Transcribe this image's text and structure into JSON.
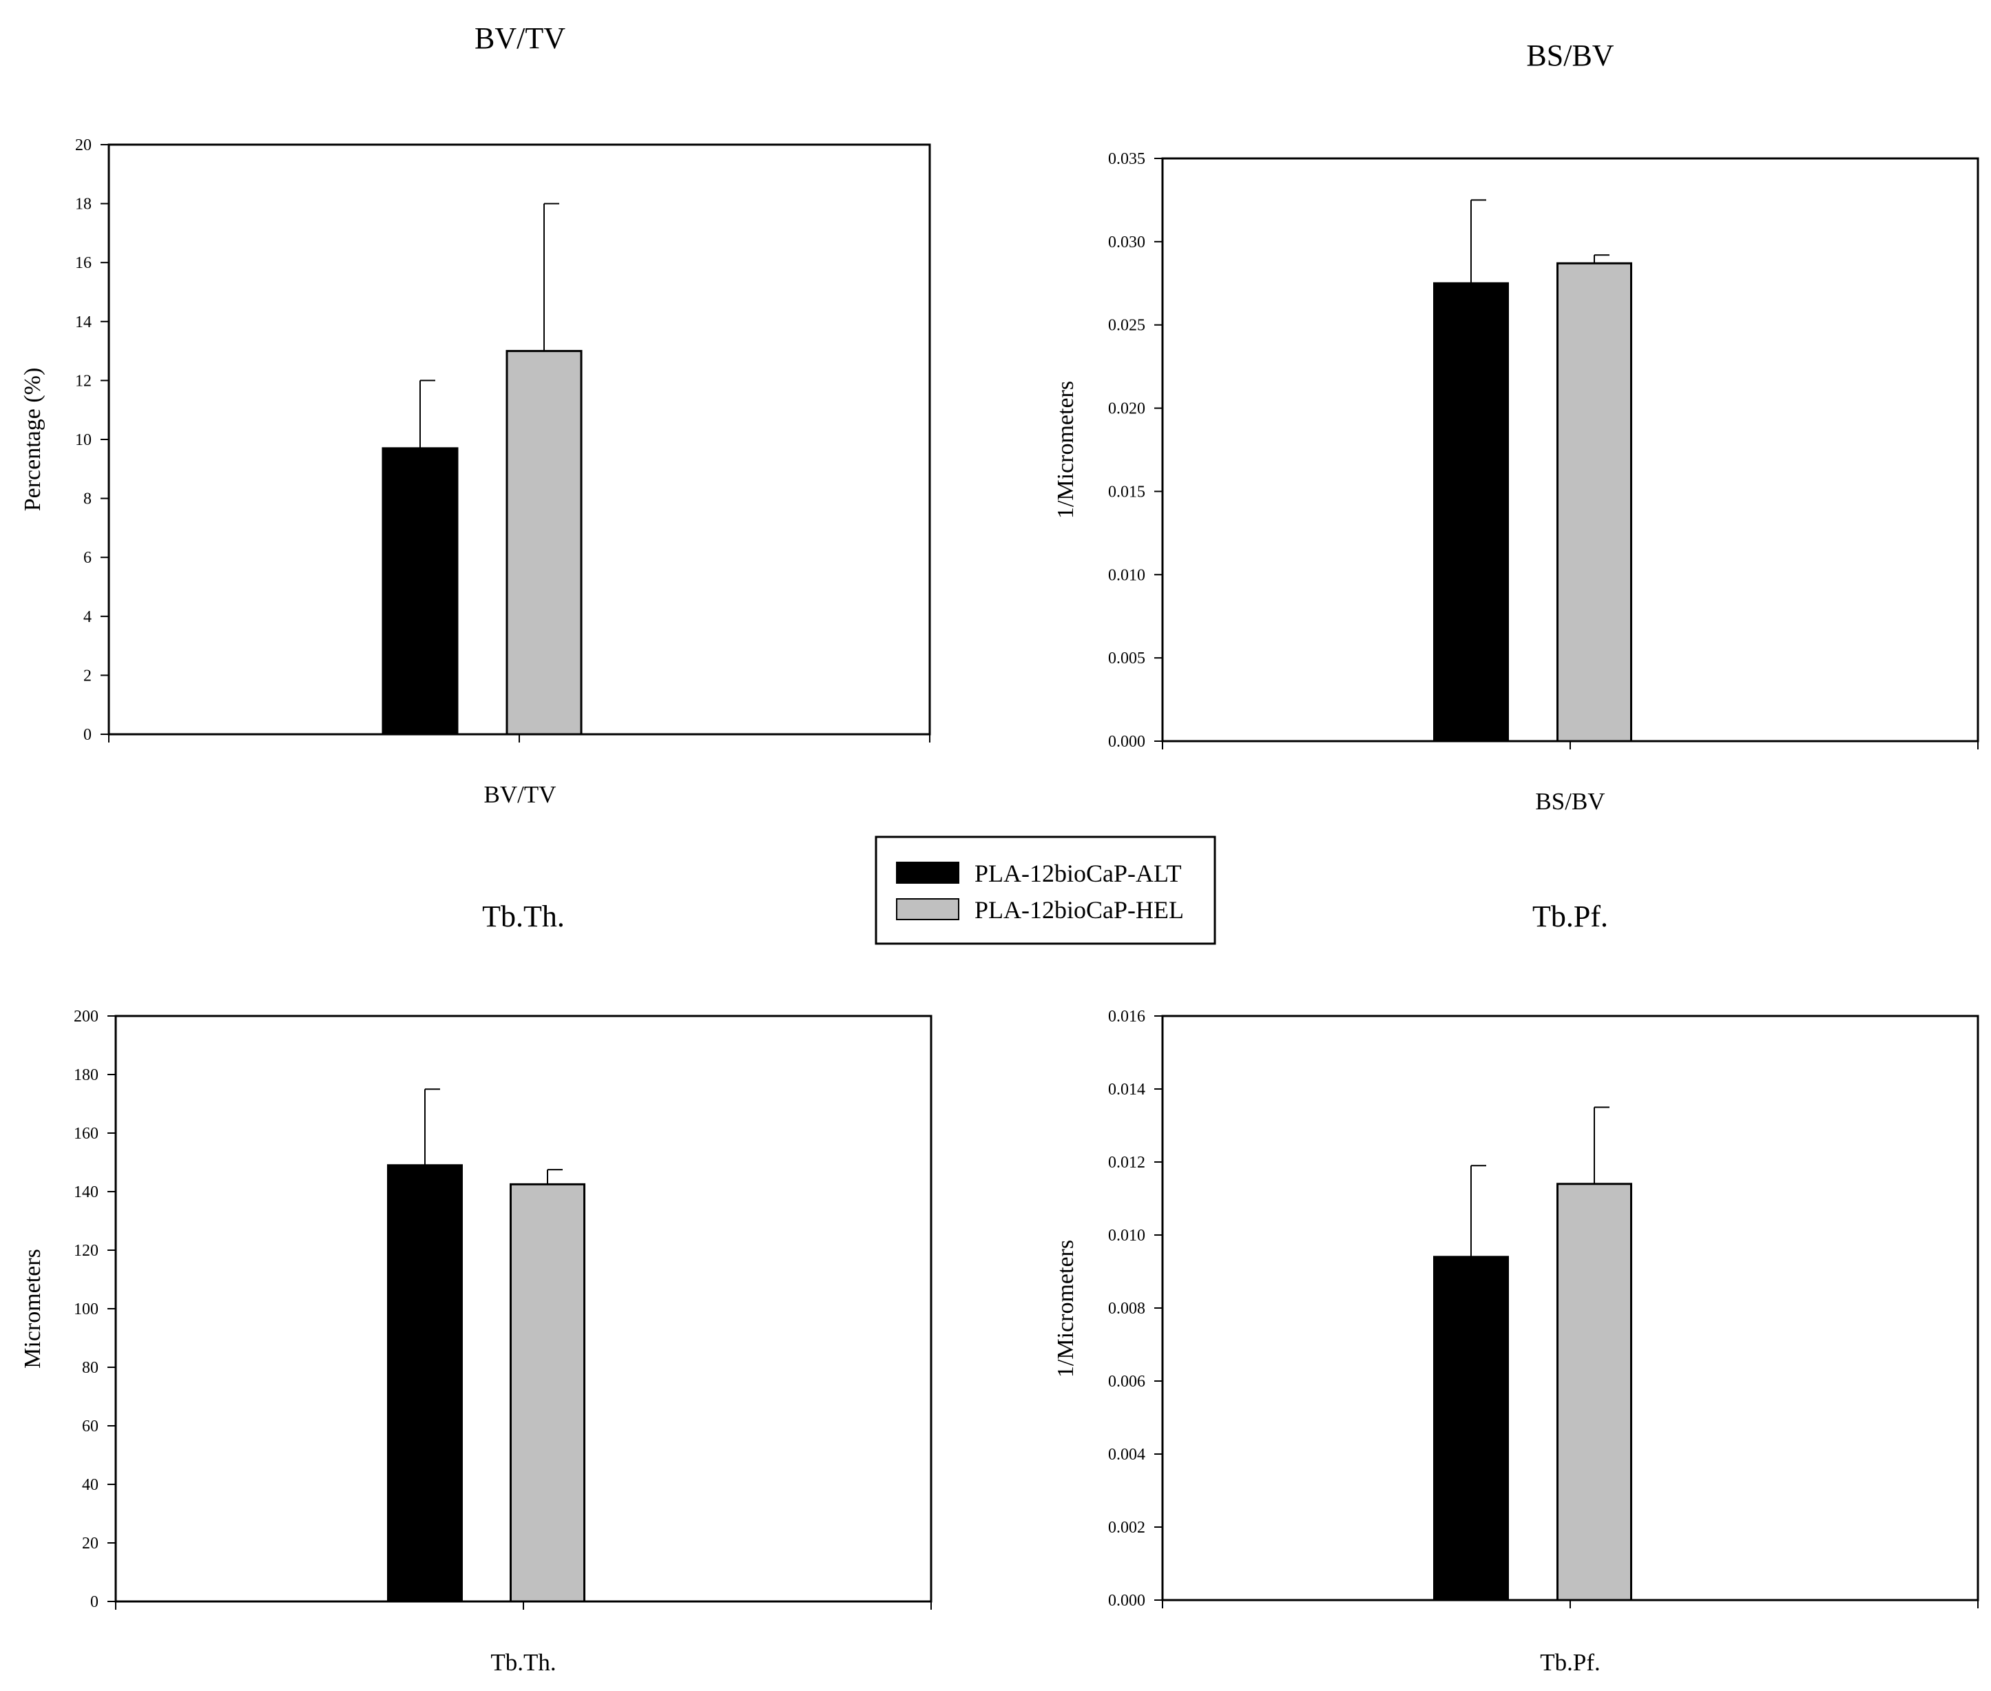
{
  "legend": [
    {
      "label": "PLA-12bioCaP-ALT",
      "color": "#000000"
    },
    {
      "label": "PLA-12bioCaP-HEL",
      "color": "#c0c0c0"
    }
  ],
  "chart_data": [
    {
      "type": "bar",
      "title": "BV/TV",
      "categories": [
        "BV/TV"
      ],
      "ylabel": "Percentage (%)",
      "xlabel": "",
      "ylim": [
        0,
        20
      ],
      "yticks": [
        "0",
        "2",
        "4",
        "6",
        "8",
        "10",
        "12",
        "14",
        "16",
        "18",
        "20"
      ],
      "series": [
        {
          "name": "PLA-12bioCaP-ALT",
          "values": [
            9.7
          ],
          "error": [
            2.3
          ]
        },
        {
          "name": "PLA-12bioCaP-HEL",
          "values": [
            13.0
          ],
          "error": [
            5.0
          ]
        }
      ]
    },
    {
      "type": "bar",
      "title": "BS/BV",
      "categories": [
        "BS/BV"
      ],
      "ylabel": "1/Micrometers",
      "xlabel": "",
      "ylim": [
        0,
        0.035
      ],
      "yticks": [
        "0.000",
        "0.005",
        "0.010",
        "0.015",
        "0.020",
        "0.025",
        "0.030",
        "0.035"
      ],
      "series": [
        {
          "name": "PLA-12bioCaP-ALT",
          "values": [
            0.0275
          ],
          "error": [
            0.005
          ]
        },
        {
          "name": "PLA-12bioCaP-HEL",
          "values": [
            0.0287
          ],
          "error": [
            0.0005
          ]
        }
      ]
    },
    {
      "type": "bar",
      "title": "Tb.Th.",
      "categories": [
        "Tb.Th."
      ],
      "ylabel": "Micrometers",
      "xlabel": "",
      "ylim": [
        0,
        200
      ],
      "yticks": [
        "0",
        "20",
        "40",
        "60",
        "80",
        "100",
        "120",
        "140",
        "160",
        "180",
        "200"
      ],
      "series": [
        {
          "name": "PLA-12bioCaP-ALT",
          "values": [
            149
          ],
          "error": [
            26
          ]
        },
        {
          "name": "PLA-12bioCaP-HEL",
          "values": [
            142.5
          ],
          "error": [
            5
          ]
        }
      ]
    },
    {
      "type": "bar",
      "title": "Tb.Pf.",
      "categories": [
        "Tb.Pf."
      ],
      "ylabel": "1/Micrometers",
      "xlabel": "",
      "ylim": [
        0,
        0.016
      ],
      "yticks": [
        "0.000",
        "0.002",
        "0.004",
        "0.006",
        "0.008",
        "0.010",
        "0.012",
        "0.014",
        "0.016"
      ],
      "series": [
        {
          "name": "PLA-12bioCaP-ALT",
          "values": [
            0.0094
          ],
          "error": [
            0.0025
          ]
        },
        {
          "name": "PLA-12bioCaP-HEL",
          "values": [
            0.0114
          ],
          "error": [
            0.0021
          ]
        }
      ]
    }
  ]
}
